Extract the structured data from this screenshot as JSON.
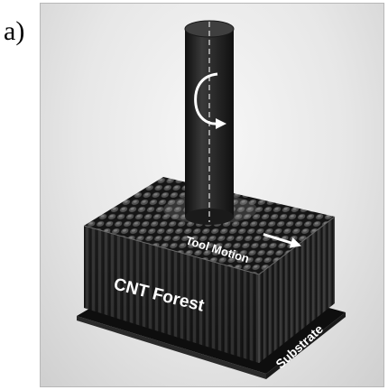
{
  "panel_label": "a)",
  "labels": {
    "tool_motion": "Tool Motion",
    "cnt_forest": "CNT Forest",
    "substrate": "Substrate"
  },
  "colors": {
    "background": "#ffffff",
    "frame_bg": "#e6e6e6",
    "cnt_dark": "#1e1e1e",
    "cnt_top": "#5a5a5a",
    "tool": "#262626",
    "substrate": "#121212",
    "arrow": "#ffffff"
  },
  "icons": {
    "rotation": "curved-rotation-arrow-icon",
    "motion": "right-arrow-icon"
  }
}
